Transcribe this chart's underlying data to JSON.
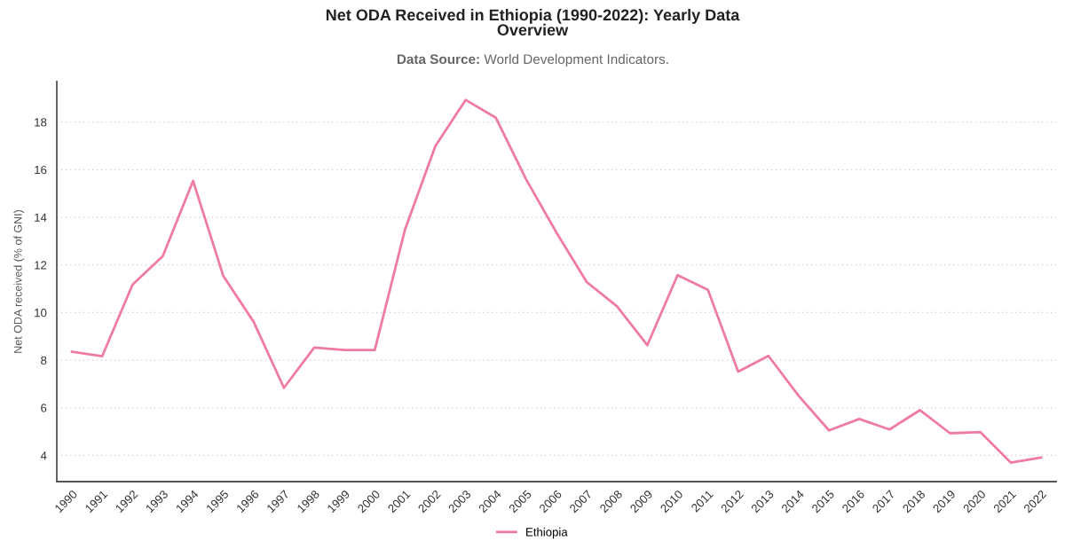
{
  "chart_data": {
    "type": "line",
    "title": "Net ODA Received in Ethiopia (1990-2022): Yearly Data\nOverview",
    "subtitle": "Data Source: World Development Indicators.",
    "ylabel": "Net ODA received (% of GNI)",
    "categories": [
      "1990",
      "1991",
      "1992",
      "1993",
      "1994",
      "1995",
      "1996",
      "1997",
      "1998",
      "1999",
      "2000",
      "2001",
      "2002",
      "2003",
      "2004",
      "2005",
      "2006",
      "2007",
      "2008",
      "2009",
      "2010",
      "2011",
      "2012",
      "2013",
      "2014",
      "2015",
      "2016",
      "2017",
      "2018",
      "2019",
      "2020",
      "2021",
      "2022"
    ],
    "series": [
      {
        "name": "Ethiopia",
        "color": "#f07aa6",
        "values": [
          8.35,
          8.17,
          11.17,
          12.37,
          15.53,
          11.53,
          9.61,
          6.84,
          8.53,
          8.43,
          8.43,
          13.49,
          16.99,
          18.93,
          18.18,
          15.59,
          13.36,
          11.28,
          10.26,
          8.63,
          11.57,
          10.96,
          7.52,
          8.18,
          6.5,
          5.05,
          5.53,
          5.09,
          5.9,
          4.93,
          4.98,
          3.7,
          3.91
        ]
      }
    ],
    "ylim": [
      2.9,
      19.7
    ],
    "yticks": [
      4,
      6,
      8,
      10,
      12,
      14,
      16,
      18
    ],
    "grid": "y",
    "legend": "bottom",
    "line_style": "solid"
  }
}
